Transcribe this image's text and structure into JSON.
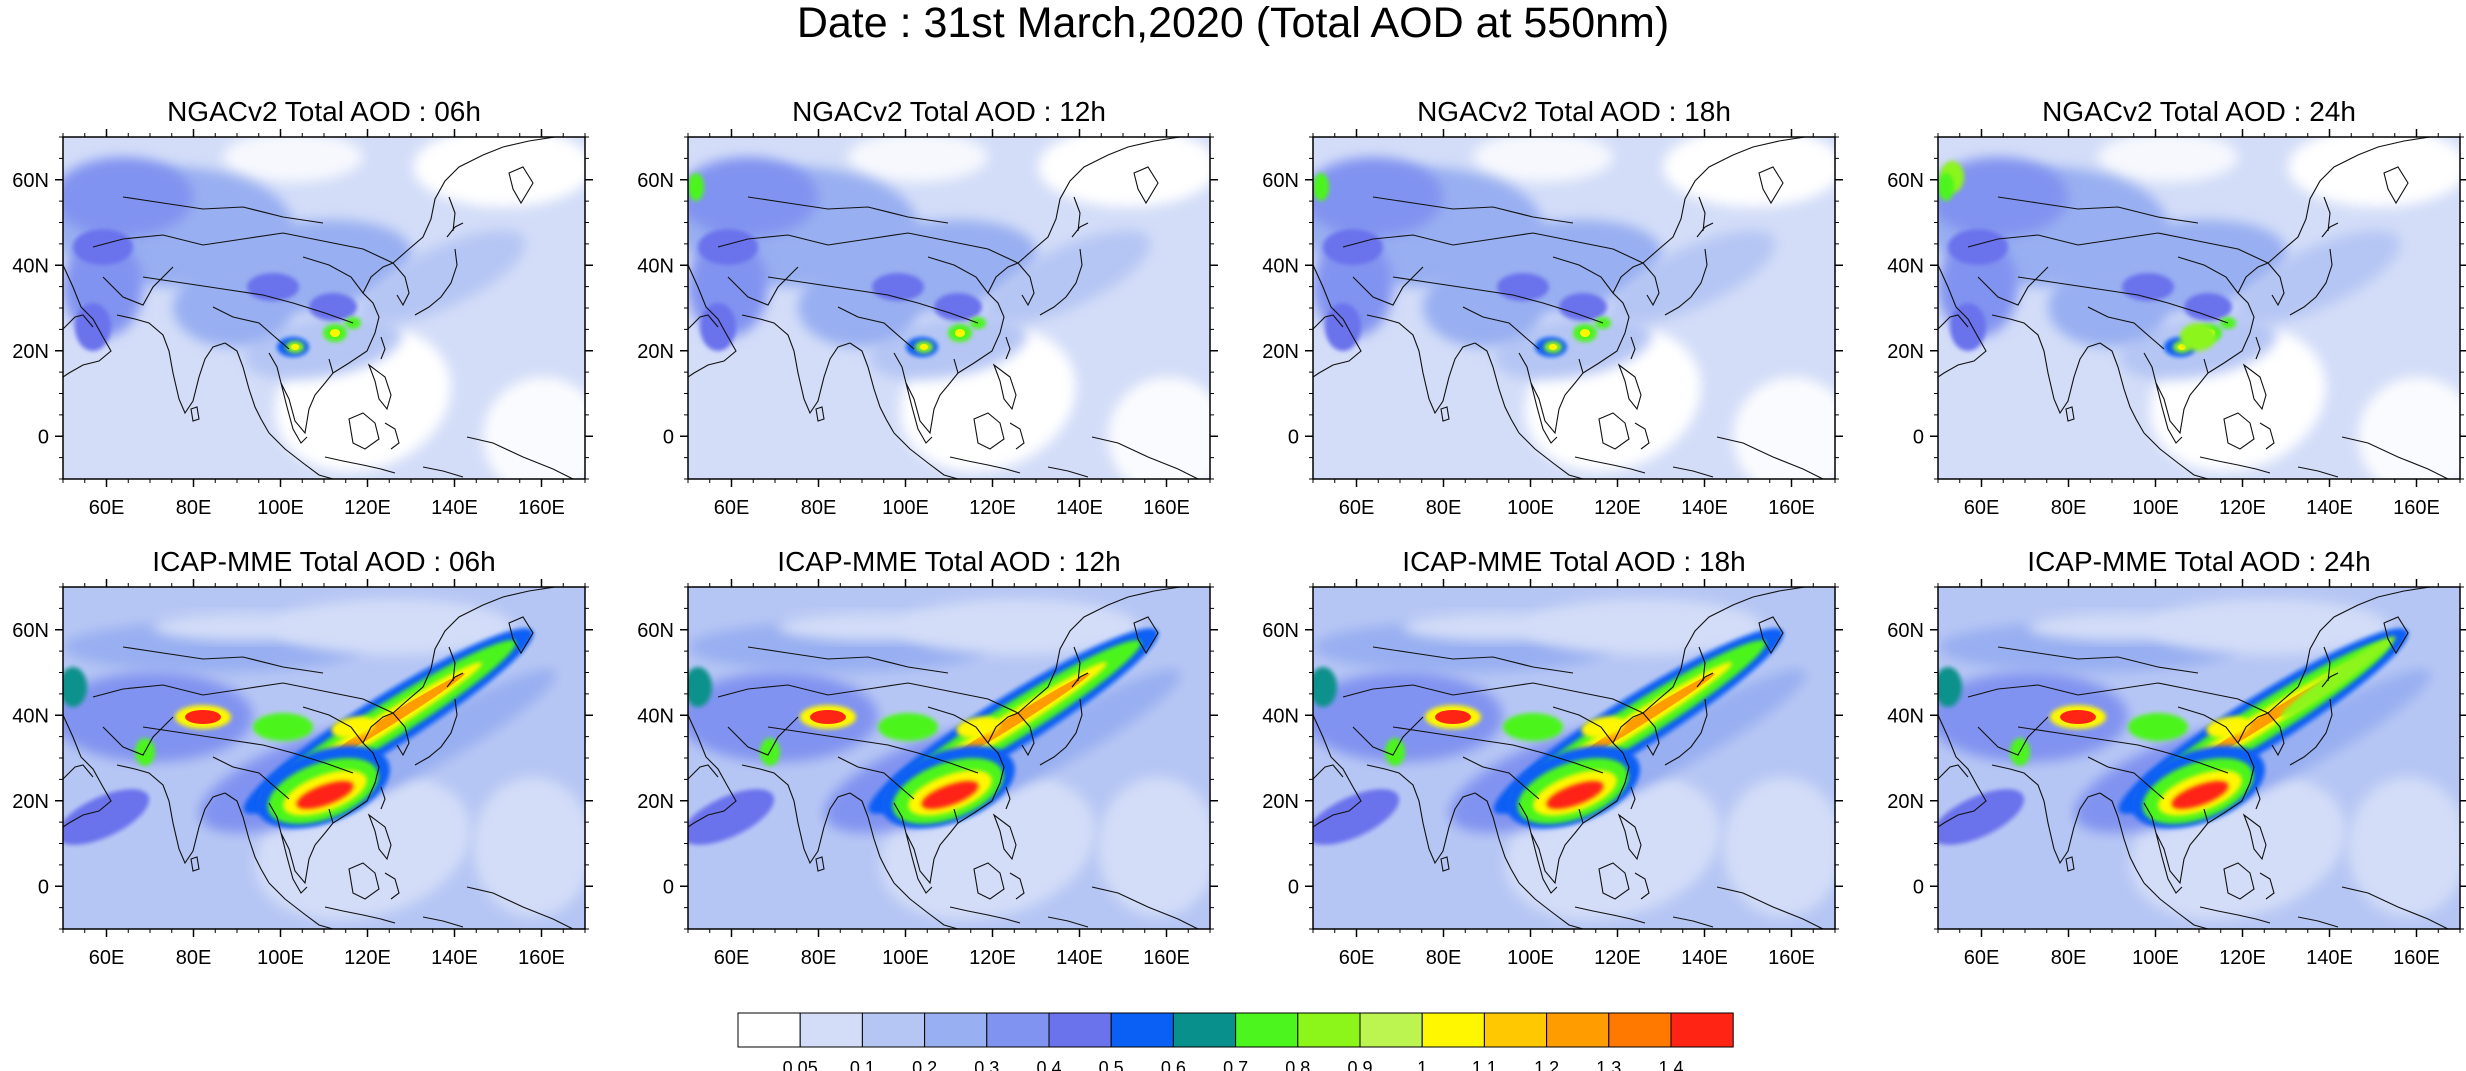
{
  "title": "Date : 31st March,2020 (Total AOD at 550nm)",
  "axis_lat_labels": [
    "60N",
    "40N",
    "20N",
    "0"
  ],
  "axis_lon_labels": [
    "60E",
    "80E",
    "100E",
    "120E",
    "140E",
    "160E"
  ],
  "panels": [
    {
      "title": "NGACv2 Total AOD : 06h",
      "model": "NGACv2",
      "hour": "06h"
    },
    {
      "title": "NGACv2 Total AOD : 12h",
      "model": "NGACv2",
      "hour": "12h"
    },
    {
      "title": "NGACv2 Total AOD : 18h",
      "model": "NGACv2",
      "hour": "18h"
    },
    {
      "title": "NGACv2 Total AOD : 24h",
      "model": "NGACv2",
      "hour": "24h"
    },
    {
      "title": "ICAP-MME Total AOD : 06h",
      "model": "ICAP-MME",
      "hour": "06h"
    },
    {
      "title": "ICAP-MME Total AOD : 12h",
      "model": "ICAP-MME",
      "hour": "12h"
    },
    {
      "title": "ICAP-MME Total AOD : 18h",
      "model": "ICAP-MME",
      "hour": "18h"
    },
    {
      "title": "ICAP-MME Total AOD : 24h",
      "model": "ICAP-MME",
      "hour": "24h"
    }
  ],
  "colorbar": {
    "colors": [
      "#ffffff",
      "#d3ddf8",
      "#b6c6f4",
      "#98aff1",
      "#8193f0",
      "#6a72ec",
      "#0a5ff5",
      "#08918c",
      "#4cf51d",
      "#8cf51a",
      "#bdf550",
      "#fff700",
      "#ffc800",
      "#ff9d00",
      "#ff7800",
      "#ff2414"
    ],
    "labels": [
      "0.05",
      "0.1",
      "0.2",
      "0.3",
      "0.4",
      "0.5",
      "0.6",
      "0.7",
      "0.8",
      "0.9",
      "1",
      "1.1",
      "1.2",
      "1.3",
      "1.4"
    ]
  },
  "chart_data": {
    "type": "heatmap",
    "variable": "Total AOD at 550nm",
    "date": "31st March,2020",
    "lon_range": [
      50,
      170
    ],
    "lat_range": [
      -10,
      70
    ],
    "lat_ticks": [
      "60N",
      "40N",
      "20N",
      "0"
    ],
    "lon_ticks": [
      "60E",
      "80E",
      "100E",
      "120E",
      "140E",
      "160E"
    ],
    "levels": [
      0.05,
      0.1,
      0.2,
      0.3,
      0.4,
      0.5,
      0.6,
      0.7,
      0.8,
      0.9,
      1,
      1.1,
      1.2,
      1.3,
      1.4
    ]
  }
}
